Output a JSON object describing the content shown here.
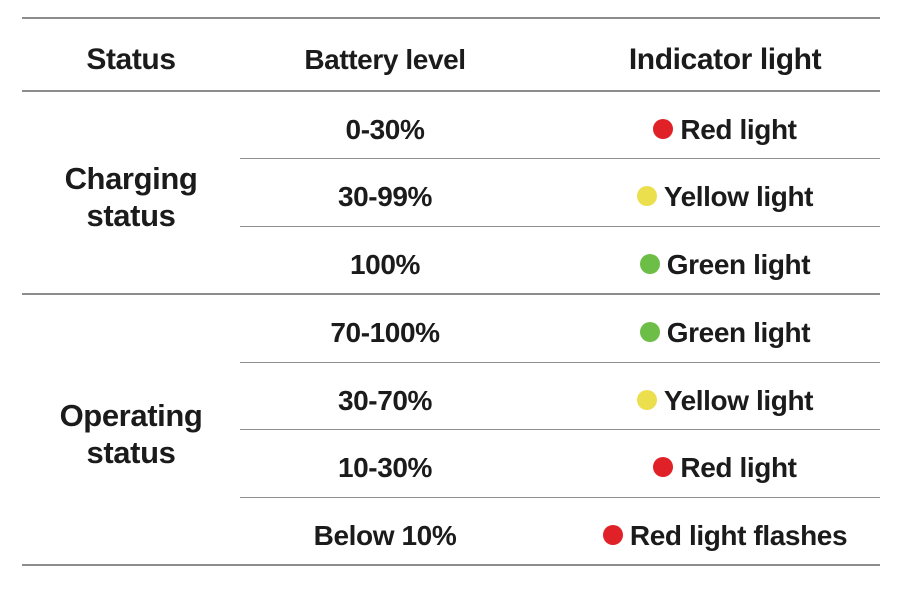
{
  "header": {
    "columns": [
      "Status",
      "Battery level",
      "Indicator light"
    ]
  },
  "sections": [
    {
      "status": "Charging status",
      "rows": [
        {
          "battery": "0-30%",
          "indicator": "Red light",
          "color": "red"
        },
        {
          "battery": "30-99%",
          "indicator": "Yellow light",
          "color": "yellow"
        },
        {
          "battery": "100%",
          "indicator": "Green light",
          "color": "green"
        }
      ]
    },
    {
      "status": "Operating status",
      "rows": [
        {
          "battery": "70-100%",
          "indicator": "Green light",
          "color": "green"
        },
        {
          "battery": "30-70%",
          "indicator": "Yellow light",
          "color": "yellow"
        },
        {
          "battery": "10-30%",
          "indicator": "Red light",
          "color": "red"
        },
        {
          "battery": "Below 10%",
          "indicator": "Red light flashes",
          "color": "red"
        }
      ]
    }
  ],
  "indicator_colors": {
    "red": "#e02127",
    "yellow": "#ebdf4d",
    "green": "#6dbe47"
  },
  "line_color": "#8c8c8c"
}
